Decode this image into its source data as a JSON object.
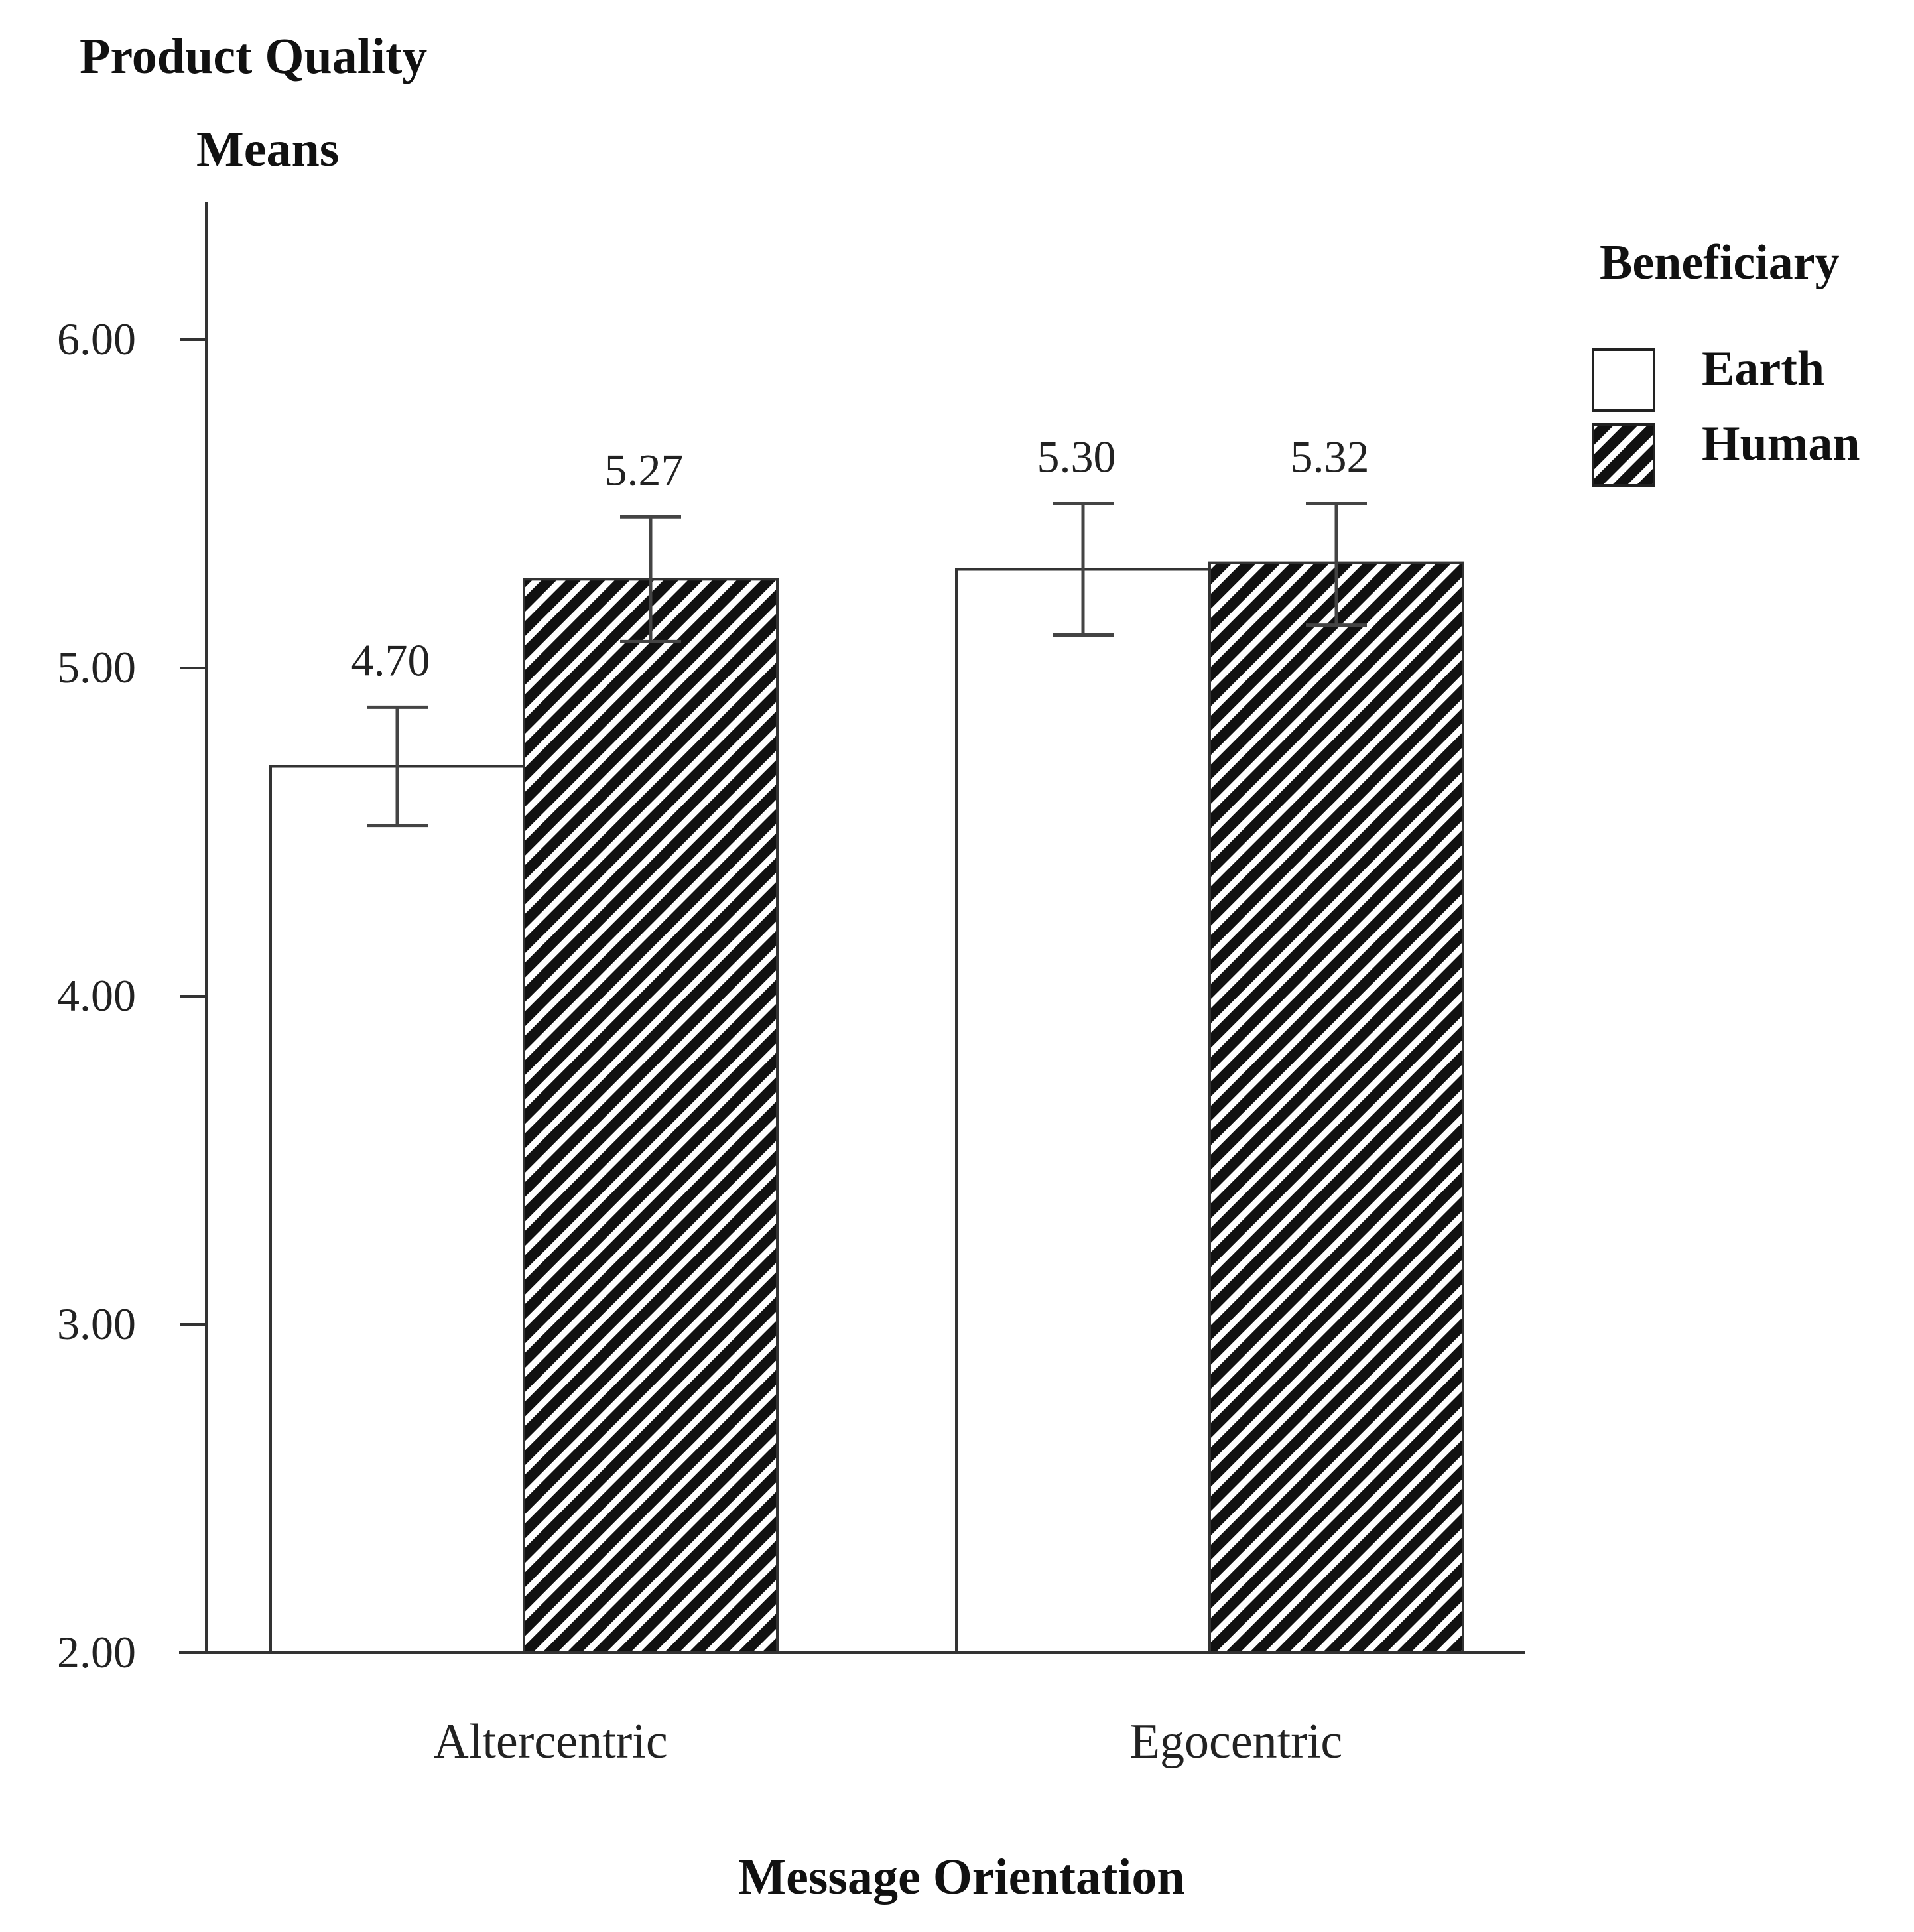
{
  "chart_data": {
    "type": "bar",
    "ylabel_line1": "Product Quality",
    "ylabel_line2": "Means",
    "xlabel": "Message Orientation",
    "categories": [
      "Altercentric",
      "Egocentric"
    ],
    "series": [
      {
        "name": "Earth",
        "values": [
          4.7,
          5.3
        ],
        "error_low": [
          4.52,
          5.1
        ],
        "error_high": [
          4.88,
          5.5
        ],
        "value_labels": [
          "4.70",
          "5.30"
        ],
        "fill": "#ffffff"
      },
      {
        "name": "Human",
        "values": [
          5.27,
          5.32
        ],
        "error_low": [
          5.08,
          5.13
        ],
        "error_high": [
          5.46,
          5.5
        ],
        "value_labels": [
          "5.27",
          "5.32"
        ],
        "fill": "hatched"
      }
    ],
    "ylim": [
      2.0,
      6.0
    ],
    "yticks": [
      "2.00",
      "3.00",
      "4.00",
      "5.00",
      "6.00"
    ],
    "legend_title": "Beneficiary",
    "legend_position": "top-right",
    "grid": false
  }
}
